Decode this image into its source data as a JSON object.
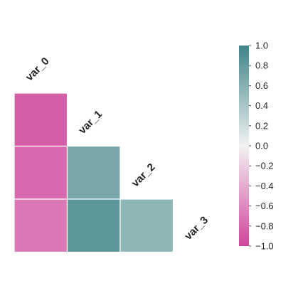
{
  "chart_data": {
    "type": "heatmap",
    "variables": [
      "var_0",
      "var_1",
      "var_2",
      "var_3"
    ],
    "cells": [
      {
        "row": 1,
        "col": 0,
        "value": -0.85
      },
      {
        "row": 2,
        "col": 0,
        "value": -0.78
      },
      {
        "row": 2,
        "col": 1,
        "value": 0.68
      },
      {
        "row": 3,
        "col": 0,
        "value": -0.7
      },
      {
        "row": 3,
        "col": 1,
        "value": 0.84
      },
      {
        "row": 3,
        "col": 2,
        "value": 0.55
      }
    ],
    "mask": "upper-triangle",
    "colorbar": {
      "min": -1.0,
      "max": 1.0,
      "ticks": [
        1.0,
        0.8,
        0.6,
        0.4,
        0.2,
        0.0,
        -0.2,
        -0.4,
        -0.6,
        -0.8,
        -1.0
      ],
      "tick_labels": [
        "1.0",
        "0.8",
        "0.6",
        "0.4",
        "0.2",
        "0.0",
        "−0.2",
        "−0.4",
        "−0.6",
        "−0.8",
        "−1.0"
      ],
      "position": "right"
    },
    "colors": {
      "negative": "#d0449b",
      "neutral": "#f2f2f2",
      "positive": "#3e8487"
    },
    "title": "",
    "xlabel": "",
    "ylabel": ""
  }
}
